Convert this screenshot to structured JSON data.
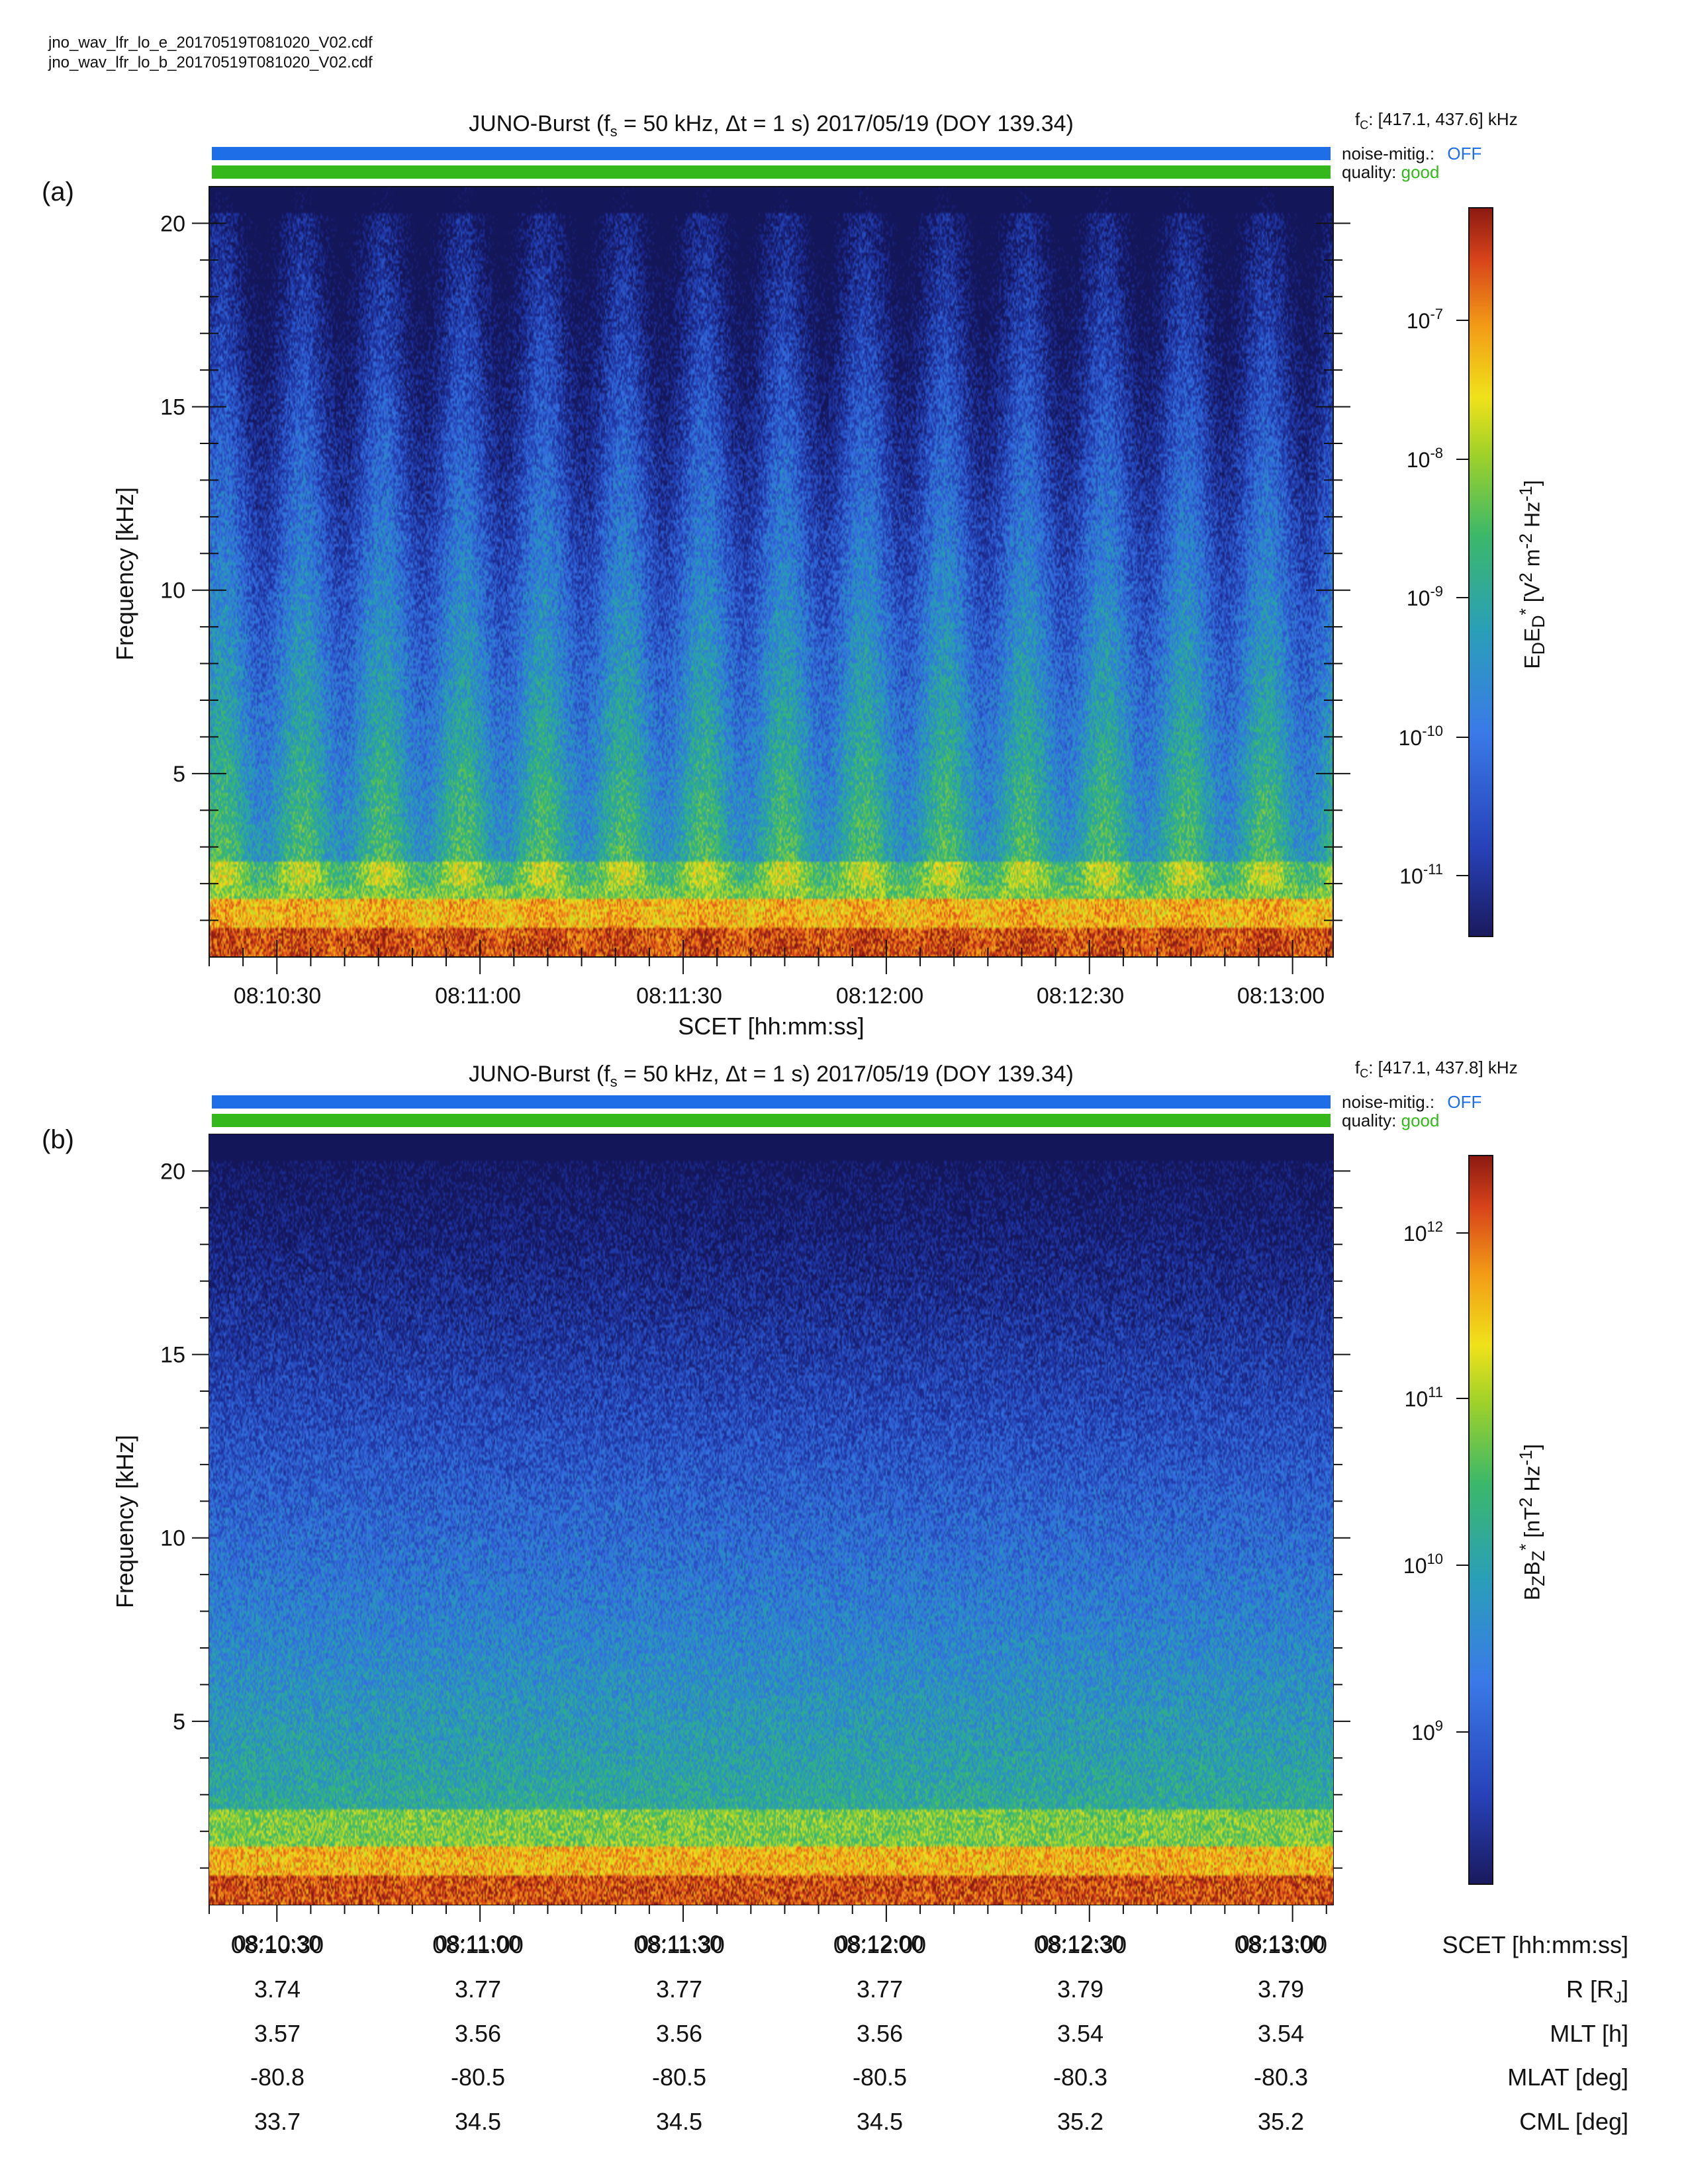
{
  "files": [
    "jno_wav_lfr_lo_e_20170519T081020_V02.cdf",
    "jno_wav_lfr_lo_b_20170519T081020_V02.cdf"
  ],
  "colors": {
    "noise_bar": "#1e6ee8",
    "quality_bar": "#34b81b",
    "off_text": "#1e6ee8",
    "good_text": "#34b81b"
  },
  "panels": [
    {
      "tag": "(a)",
      "title": "JUNO-Burst (f",
      "title_sub": "s",
      "title_rest": " = 50 kHz, Δt = 1 s)  2017/05/19 (DOY 139.34)",
      "fc_prefix": "f",
      "fc_sub": "C",
      "fc_text": ": [417.1, 437.6] kHz",
      "noise_label": "noise-mitig.:",
      "noise_value": "OFF",
      "quality_label": "quality:",
      "quality_value": "good",
      "ylabel": "Frequency [kHz]",
      "xlabel": "SCET [hh:mm:ss]",
      "cb_label_html": "E<sub>D</sub>E<sub>D</sub><sup>*</sup> [V<sup>2</sup> m<sup>-2</sup> Hz<sup>-1</sup>]",
      "cb_ticks": [
        {
          "base": "10",
          "exp": "-7"
        },
        {
          "base": "10",
          "exp": "-8"
        },
        {
          "base": "10",
          "exp": "-9"
        },
        {
          "base": "10",
          "exp": "-10"
        },
        {
          "base": "10",
          "exp": "-11"
        }
      ]
    },
    {
      "tag": "(b)",
      "title": "JUNO-Burst (f",
      "title_sub": "s",
      "title_rest": " = 50 kHz, Δt = 1 s)  2017/05/19 (DOY 139.34)",
      "fc_prefix": "f",
      "fc_sub": "C",
      "fc_text": ": [417.1, 437.8] kHz",
      "noise_label": "noise-mitig.:",
      "noise_value": "OFF",
      "quality_label": "quality:",
      "quality_value": "good",
      "ylabel": "Frequency [kHz]",
      "xlabel": "",
      "cb_label_html": "B<sub>Z</sub>B<sub>Z</sub><sup>*</sup> [nT<sup>2</sup> Hz<sup>-1</sup>]",
      "cb_ticks": [
        {
          "base": "10",
          "exp": "12"
        },
        {
          "base": "10",
          "exp": "11"
        },
        {
          "base": "10",
          "exp": "10"
        },
        {
          "base": "10",
          "exp": "9"
        }
      ]
    }
  ],
  "ephemeris": {
    "row_labels": [
      "SCET [hh:mm:ss]",
      "R [R",
      "MLT [h]",
      "MLAT [deg]",
      "CML [deg]"
    ],
    "r_label_sub": "J",
    "r_label_end": "]",
    "times": [
      "08:10:30",
      "08:11:00",
      "08:11:30",
      "08:12:00",
      "08:12:30",
      "08:13:00"
    ],
    "R": [
      "3.74",
      "3.77",
      "3.77",
      "3.77",
      "3.79",
      "3.79"
    ],
    "MLT": [
      "3.57",
      "3.56",
      "3.56",
      "3.56",
      "3.54",
      "3.54"
    ],
    "MLAT": [
      "-80.8",
      "-80.5",
      "-80.5",
      "-80.5",
      "-80.3",
      "-80.3"
    ],
    "CML": [
      "33.7",
      "34.5",
      "34.5",
      "34.5",
      "35.2",
      "35.2"
    ]
  },
  "chart_data": [
    {
      "type": "heatmap",
      "title": "JUNO-Burst (fs = 50 kHz, Δt = 1 s)  2017/05/19 (DOY 139.34)",
      "xlabel": "SCET [hh:mm:ss]",
      "ylabel": "Frequency [kHz]",
      "x_ticks": [
        "08:10:30",
        "08:11:00",
        "08:11:30",
        "08:12:00",
        "08:12:30",
        "08:13:00"
      ],
      "y_ticks": [
        5,
        10,
        15,
        20
      ],
      "xlim": [
        "08:10:20",
        "08:13:06"
      ],
      "ylim": [
        0,
        21
      ],
      "colorbar": {
        "label": "EDED* [V2 m-2 Hz-1]",
        "scale": "log",
        "range": [
          4e-12,
          6e-07
        ],
        "ticks": [
          1e-07,
          1e-08,
          1e-09,
          1e-10,
          1e-11
        ]
      },
      "features": {
        "strong_band_below_kHz": 2,
        "periodic_vertical_bursts": true,
        "burst_count": 14
      }
    },
    {
      "type": "heatmap",
      "title": "JUNO-Burst (fs = 50 kHz, Δt = 1 s)  2017/05/19 (DOY 139.34)",
      "xlabel": "SCET [hh:mm:ss]",
      "ylabel": "Frequency [kHz]",
      "x_ticks": [
        "08:10:30",
        "08:11:00",
        "08:11:30",
        "08:12:00",
        "08:12:30",
        "08:13:00"
      ],
      "y_ticks": [
        5,
        10,
        15,
        20
      ],
      "xlim": [
        "08:10:20",
        "08:13:06"
      ],
      "ylim": [
        0,
        21
      ],
      "colorbar": {
        "label": "BZBZ* [nT2 Hz-1]",
        "scale": "log",
        "range": [
          130000000.0,
          2800000000000.0
        ],
        "ticks": [
          1000000000000.0,
          100000000000.0,
          10000000000.0,
          1000000000.0
        ]
      },
      "features": {
        "strong_band_below_kHz": 2,
        "periodic_vertical_bursts": false
      }
    }
  ]
}
